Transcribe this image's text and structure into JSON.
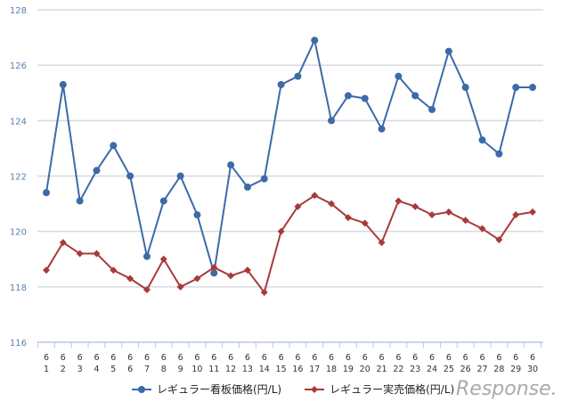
{
  "chart_data": {
    "type": "line",
    "title": "",
    "xlabel": "",
    "ylabel": "",
    "ylim": [
      116,
      128
    ],
    "yticks": [
      116,
      118,
      120,
      122,
      124,
      126,
      128
    ],
    "grid": true,
    "legend_position": "bottom",
    "x_month": "6",
    "x": [
      1,
      2,
      3,
      4,
      5,
      6,
      7,
      8,
      9,
      10,
      11,
      12,
      13,
      14,
      15,
      16,
      17,
      18,
      19,
      20,
      21,
      22,
      23,
      24,
      25,
      26,
      27,
      28,
      29,
      30
    ],
    "series": [
      {
        "name": "レギュラー看板価格(円/L)",
        "color": "#3d6aa8",
        "marker": "circle",
        "values": [
          121.4,
          125.3,
          121.1,
          122.2,
          123.1,
          122.0,
          119.1,
          121.1,
          122.0,
          120.6,
          118.5,
          122.4,
          121.6,
          121.9,
          125.3,
          125.6,
          126.9,
          124.0,
          124.9,
          124.8,
          123.7,
          125.6,
          124.9,
          124.4,
          126.5,
          125.2,
          123.3,
          122.8,
          125.2,
          125.2
        ]
      },
      {
        "name": "レギュラー実売価格(円/L)",
        "color": "#a83a3a",
        "marker": "diamond",
        "values": [
          118.6,
          119.6,
          119.2,
          119.2,
          118.6,
          118.3,
          117.9,
          119.0,
          118.0,
          118.3,
          118.7,
          118.4,
          118.6,
          117.8,
          120.0,
          120.9,
          121.3,
          121.0,
          120.5,
          120.3,
          119.6,
          121.1,
          120.9,
          120.6,
          120.7,
          120.4,
          120.1,
          119.7,
          120.6,
          120.7
        ]
      }
    ]
  },
  "watermark": "Response."
}
